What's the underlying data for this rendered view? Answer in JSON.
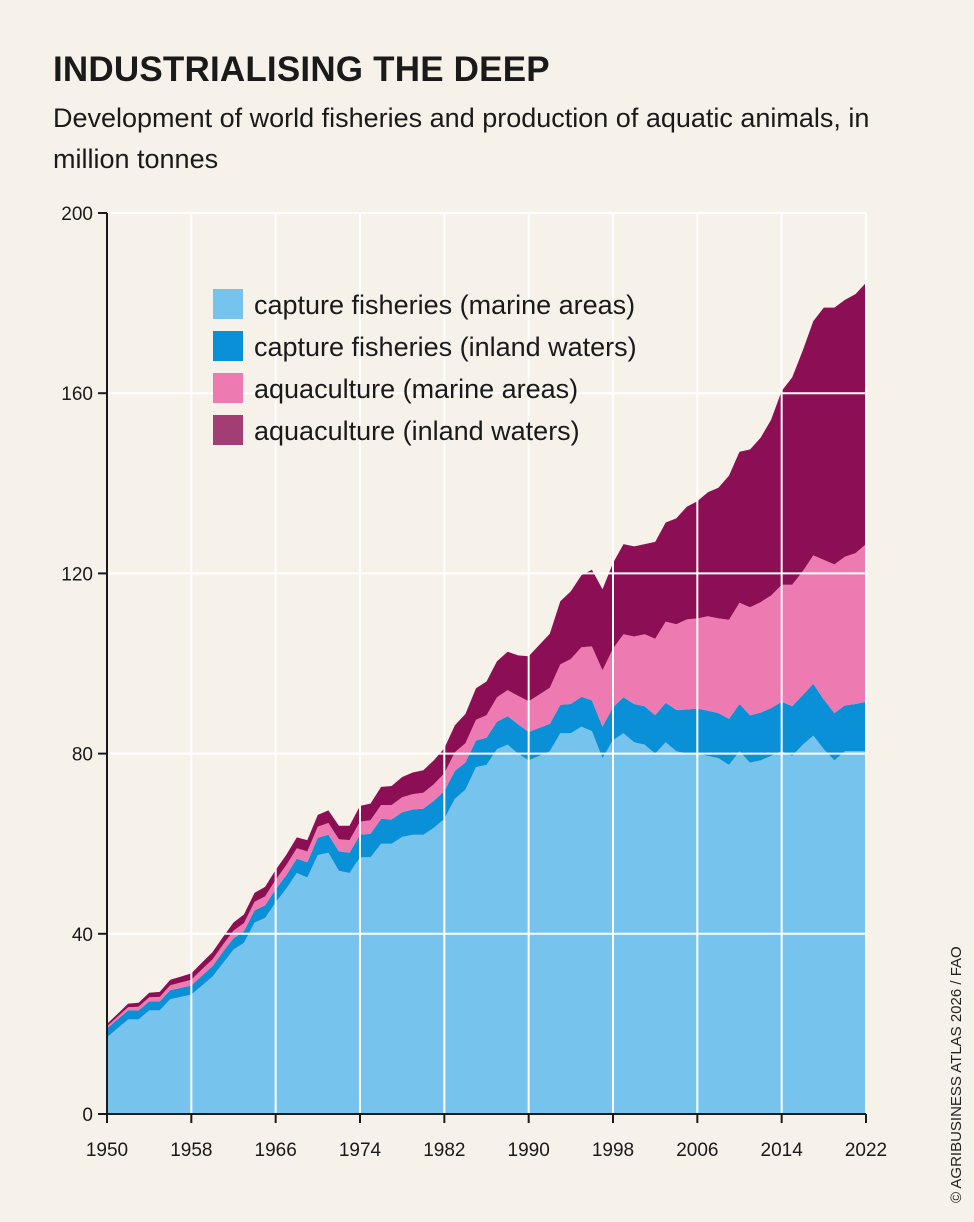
{
  "header": {
    "title": "INDUSTRIALISING THE DEEP",
    "subtitle": "Development of world fisheries and production of aquatic animals, in million tonnes"
  },
  "source": "© AGRIBUSINESS ATLAS 2026 / FAO",
  "chart_data": {
    "type": "area",
    "stacked": true,
    "x": [
      1950,
      1951,
      1952,
      1953,
      1954,
      1955,
      1956,
      1957,
      1958,
      1959,
      1960,
      1961,
      1962,
      1963,
      1964,
      1965,
      1966,
      1967,
      1968,
      1969,
      1970,
      1971,
      1972,
      1973,
      1974,
      1975,
      1976,
      1977,
      1978,
      1979,
      1980,
      1981,
      1982,
      1983,
      1984,
      1985,
      1986,
      1987,
      1988,
      1989,
      1990,
      1991,
      1992,
      1993,
      1994,
      1995,
      1996,
      1997,
      1998,
      1999,
      2000,
      2001,
      2002,
      2003,
      2004,
      2005,
      2006,
      2007,
      2008,
      2009,
      2010,
      2011,
      2012,
      2013,
      2014,
      2015,
      2016,
      2017,
      2018,
      2019,
      2020,
      2021,
      2022
    ],
    "xticks": [
      "1950",
      "1958",
      "1966",
      "1974",
      "1982",
      "1990",
      "1998",
      "2006",
      "2014",
      "2022"
    ],
    "yticks": [
      "0",
      "40",
      "80",
      "120",
      "160",
      "200"
    ],
    "ylim": [
      0,
      200
    ],
    "grid": true,
    "legend_position": "top-left",
    "series": [
      {
        "name": "capture fisheries (marine areas)",
        "color": "#76c4ee",
        "values": [
          17,
          19,
          21,
          21,
          23,
          23,
          25.5,
          26,
          26.5,
          28.5,
          30.5,
          33.5,
          36.5,
          38,
          42.5,
          43.5,
          47,
          50,
          53.5,
          52.5,
          57.5,
          58,
          54,
          53.5,
          57,
          57,
          60,
          60,
          61.5,
          62,
          62,
          63.5,
          65.5,
          70,
          72,
          77,
          77.5,
          81,
          82,
          80,
          78.5,
          79.5,
          80.5,
          84.5,
          84.5,
          86,
          85,
          79,
          83,
          84.5,
          82.5,
          82,
          80,
          82.5,
          80.5,
          80,
          80,
          79.5,
          79,
          77.5,
          80.5,
          78,
          78.5,
          79.5,
          80.5,
          79.5,
          82,
          84,
          81,
          78.5,
          80.5,
          80.5,
          80.5
        ]
      },
      {
        "name": "capture fisheries (inland waters)",
        "color": "#0a90d6",
        "values": [
          2,
          2,
          2,
          2,
          2,
          2,
          2,
          2,
          2,
          2.2,
          2.3,
          2.5,
          2.5,
          2.6,
          2.7,
          2.8,
          2.9,
          3,
          3.2,
          3.4,
          3.8,
          4,
          4.3,
          4.5,
          5,
          5.2,
          5.5,
          5.4,
          5.5,
          5.6,
          5.8,
          6,
          6.2,
          6.2,
          6,
          5.9,
          6,
          6.1,
          6.3,
          6.5,
          6.3,
          6.2,
          6.1,
          6.3,
          6.5,
          6.6,
          6.8,
          7,
          7.3,
          8,
          8.5,
          8.5,
          8.5,
          8.8,
          9.2,
          9.8,
          10,
          10,
          10,
          10.2,
          10.5,
          10.5,
          10.6,
          10.6,
          11,
          11,
          11,
          11.5,
          11,
          10.5,
          10.2,
          10.5,
          11
        ]
      },
      {
        "name": "aquaculture (marine areas)",
        "color": "#ee7ab2",
        "values": [
          0.5,
          0.6,
          0.7,
          0.8,
          0.9,
          1,
          1.1,
          1.2,
          1.3,
          1.4,
          1.5,
          1.6,
          1.7,
          1.8,
          1.9,
          2,
          2.1,
          2.2,
          2.3,
          2.4,
          2.5,
          2.6,
          2.7,
          2.8,
          2.9,
          3,
          3.1,
          3.2,
          3.3,
          3.4,
          3.5,
          3.7,
          3.9,
          4.1,
          4.3,
          4.6,
          5,
          5.4,
          5.8,
          6.3,
          6.8,
          7.4,
          8,
          9,
          10,
          11,
          12,
          12.5,
          13,
          14,
          15,
          16,
          17,
          18,
          19,
          20,
          20,
          21,
          21,
          22,
          22.5,
          24,
          24.5,
          25,
          26,
          27,
          27.5,
          28.5,
          31,
          33,
          33,
          33.5,
          35
        ]
      },
      {
        "name": "aquaculture (inland waters)",
        "color": "#8c0f55",
        "values": [
          0.5,
          0.6,
          0.8,
          0.9,
          1,
          1.1,
          1.2,
          1.3,
          1.4,
          1.5,
          1.6,
          1.7,
          1.8,
          1.9,
          2,
          2.1,
          2.2,
          2.3,
          2.4,
          2.5,
          2.6,
          2.8,
          3,
          3.2,
          3.5,
          3.7,
          4,
          4.2,
          4.5,
          4.8,
          5,
          5.3,
          5.6,
          6,
          6.5,
          7,
          7.5,
          8,
          8.5,
          9,
          10,
          11,
          12,
          14,
          15,
          16,
          17,
          18,
          19,
          20,
          20,
          20,
          21.5,
          22,
          23.5,
          25,
          26,
          27.5,
          29,
          32,
          33.5,
          35,
          36.5,
          39,
          43,
          46,
          49,
          52,
          56,
          57,
          57,
          57.5,
          58
        ]
      }
    ]
  }
}
